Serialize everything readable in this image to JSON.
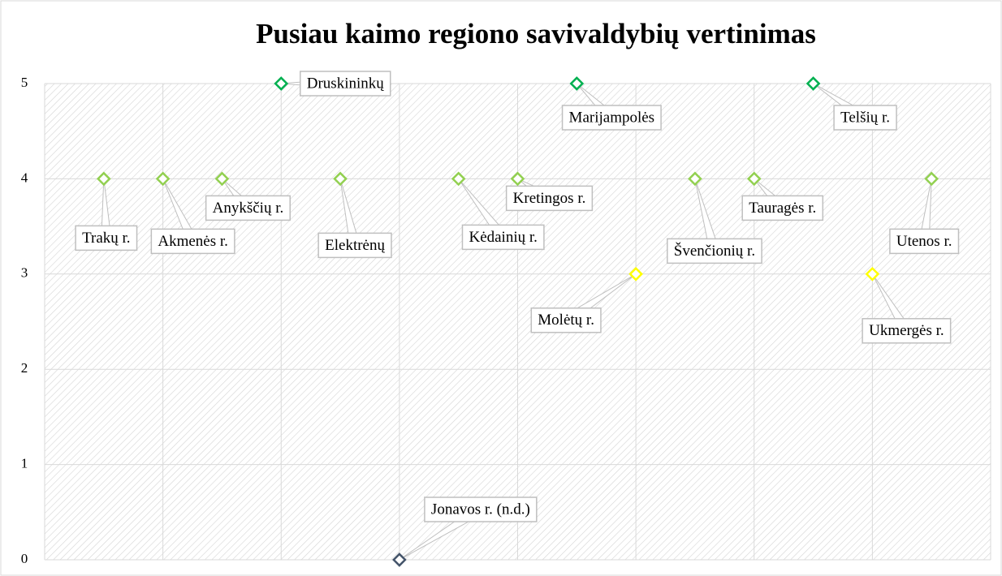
{
  "chart_data": {
    "type": "scatter",
    "title": "Pusiau kaimo regiono savivaldybių vertinimas",
    "labels": [
      "Trakų r.",
      "Akmenės r.",
      "Anykščių r.",
      "Druskininkų",
      "Elektrėnų",
      "Jonavos r. (n.d.)",
      "Kėdainių r.",
      "Kretingos r.",
      "Marijampolės",
      "Molėtų r.",
      "Švenčionių r.",
      "Tauragės r.",
      "Telšių r.",
      "Ukmergės r.",
      "Utenos r."
    ],
    "x": [
      1,
      2,
      3,
      4,
      5,
      6,
      7,
      8,
      9,
      10,
      11,
      12,
      13,
      14,
      15
    ],
    "values": [
      4,
      4,
      4,
      5,
      4,
      0,
      4,
      4,
      5,
      3,
      4,
      4,
      5,
      3,
      4
    ],
    "colors": [
      "#92d050",
      "#92d050",
      "#92d050",
      "#00b050",
      "#92d050",
      "#44546a",
      "#92d050",
      "#92d050",
      "#00b050",
      "#ffff00",
      "#92d050",
      "#92d050",
      "#00b050",
      "#ffff00",
      "#92d050"
    ],
    "xlim": [
      0,
      16
    ],
    "xticks": [
      0,
      2,
      4,
      6,
      8,
      10,
      12,
      14,
      16
    ],
    "ylim": [
      0,
      5
    ],
    "yticks": [
      0,
      1,
      2,
      3,
      4,
      5
    ],
    "grid": true
  }
}
